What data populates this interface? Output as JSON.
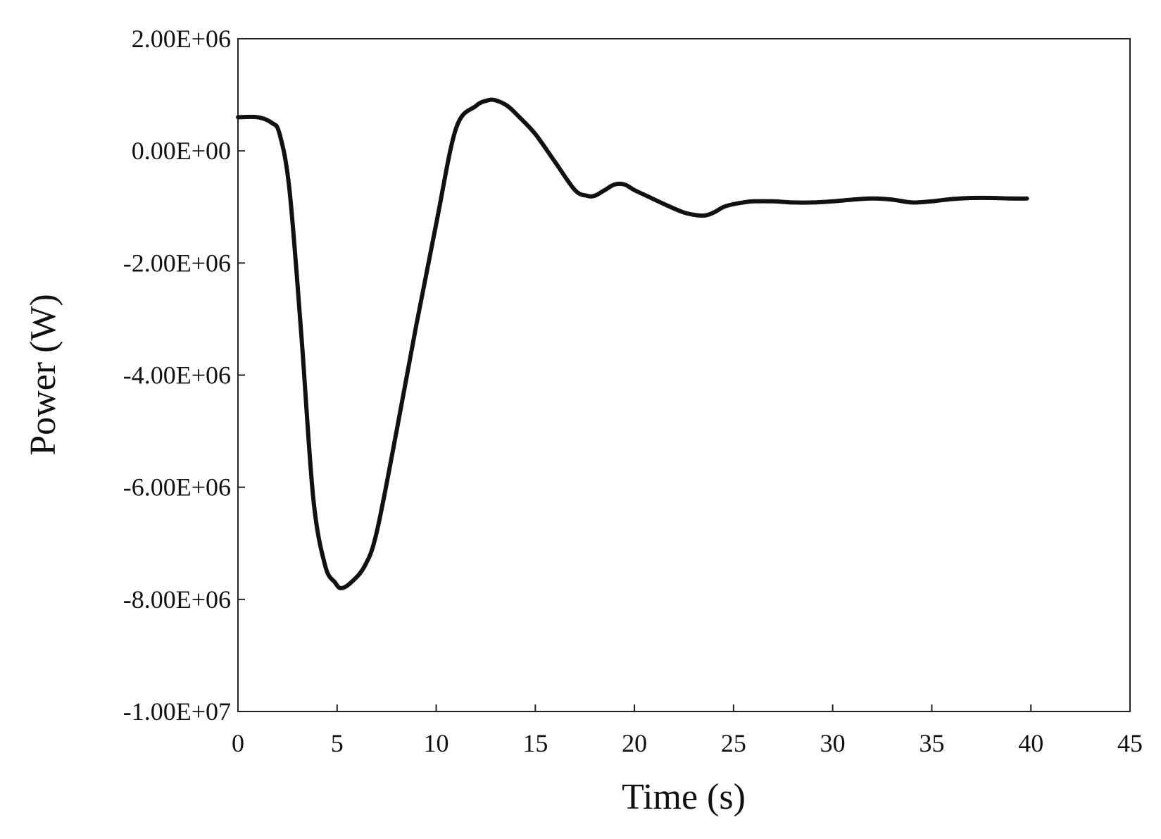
{
  "chart_data": {
    "type": "line",
    "xlabel": "Time (s)",
    "ylabel": "Power (W)",
    "xlim": [
      0,
      45
    ],
    "ylim": [
      -10000000,
      2000000
    ],
    "x_ticks": [
      0,
      5,
      10,
      15,
      20,
      25,
      30,
      35,
      40,
      45
    ],
    "x_tick_labels": [
      "0",
      "5",
      "10",
      "15",
      "20",
      "25",
      "30",
      "35",
      "40",
      "45"
    ],
    "y_ticks": [
      2000000,
      0,
      -2000000,
      -4000000,
      -6000000,
      -8000000,
      -10000000
    ],
    "y_tick_labels": [
      "2.00E+06",
      "0.00E+00",
      "-2.00E+06",
      "-4.00E+06",
      "-6.00E+06",
      "-8.00E+06",
      "-1.00E+07"
    ],
    "grid": false,
    "legend": "none",
    "line_color": "#111111",
    "series": [
      {
        "x": [
          0,
          1,
          1.7,
          2.1,
          2.6,
          3.2,
          3.8,
          4.4,
          4.9,
          5.2,
          5.7,
          6.4,
          7.0,
          8.0,
          9.0,
          10.0,
          11.0,
          12.0,
          12.6,
          13.0,
          13.6,
          14.2,
          15.0,
          16.0,
          17.0,
          17.6,
          18.0,
          18.5,
          19.0,
          19.5,
          20.0,
          20.6,
          21.5,
          22.5,
          23.2,
          23.6,
          24.0,
          24.5,
          25.0,
          25.5,
          26.0,
          27.0,
          28.0,
          29.0,
          30.0,
          31.0,
          32.0,
          33.0,
          34.0,
          35.0,
          36.0,
          37.0,
          38.0,
          39.0,
          39.8
        ],
        "y": [
          600000,
          600000,
          500000,
          300000,
          -700000,
          -3300000,
          -6200000,
          -7400000,
          -7700000,
          -7800000,
          -7700000,
          -7400000,
          -6800000,
          -5000000,
          -3100000,
          -1300000,
          400000,
          800000,
          900000,
          900000,
          800000,
          600000,
          300000,
          -200000,
          -700000,
          -800000,
          -800000,
          -700000,
          -600000,
          -600000,
          -700000,
          -800000,
          -950000,
          -1100000,
          -1150000,
          -1150000,
          -1100000,
          -1000000,
          -950000,
          -920000,
          -900000,
          -900000,
          -920000,
          -920000,
          -900000,
          -870000,
          -850000,
          -870000,
          -920000,
          -900000,
          -860000,
          -840000,
          -840000,
          -850000,
          -850000
        ]
      }
    ]
  }
}
